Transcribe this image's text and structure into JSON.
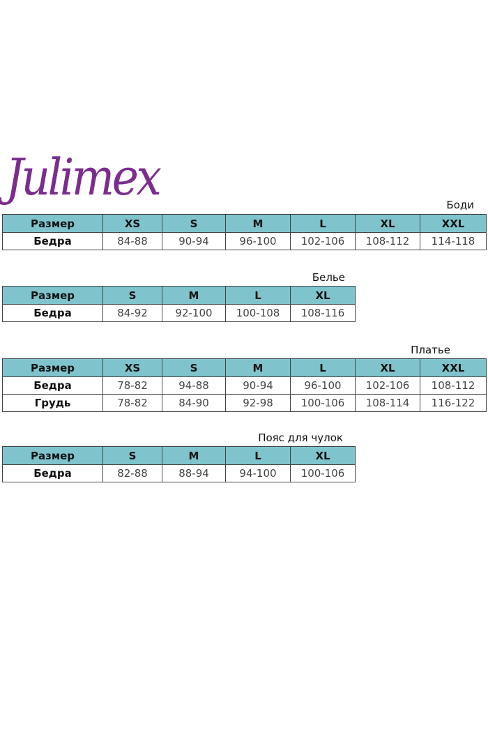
{
  "brand": "Julimex",
  "colors": {
    "header": "#7fc4cc",
    "logo": "#7b2d8e"
  },
  "tables": [
    {
      "title": "Боди",
      "headers": [
        "Размер",
        "XS",
        "S",
        "M",
        "L",
        "XL",
        "XXL"
      ],
      "rows": [
        [
          "Бедра",
          "84-88",
          "90-94",
          "96-100",
          "102-106",
          "108-112",
          "114-118"
        ]
      ]
    },
    {
      "title": "Белье",
      "headers": [
        "Размер",
        "S",
        "M",
        "L",
        "XL"
      ],
      "rows": [
        [
          "Бедра",
          "84-92",
          "92-100",
          "100-108",
          "108-116"
        ]
      ]
    },
    {
      "title": "Платье",
      "headers": [
        "Размер",
        "XS",
        "S",
        "M",
        "L",
        "XL",
        "XXL"
      ],
      "rows": [
        [
          "Бедра",
          "78-82",
          "94-88",
          "90-94",
          "96-100",
          "102-106",
          "108-112"
        ],
        [
          "Грудь",
          "78-82",
          "84-90",
          "92-98",
          "100-106",
          "108-114",
          "116-122"
        ]
      ]
    },
    {
      "title": "Пояс для чулок",
      "headers": [
        "Размер",
        "S",
        "M",
        "L",
        "XL"
      ],
      "rows": [
        [
          "Бедра",
          "82-88",
          "88-94",
          "94-100",
          "100-106"
        ]
      ]
    }
  ]
}
